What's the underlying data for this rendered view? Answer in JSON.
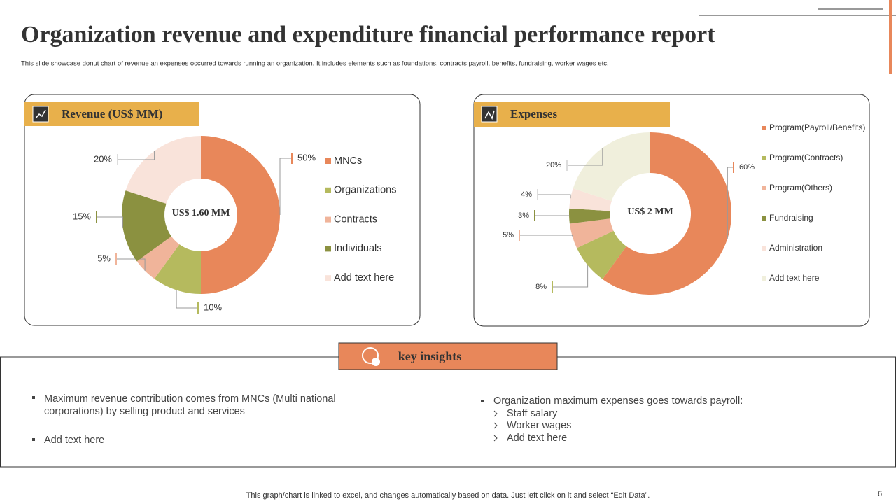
{
  "title": "Organization revenue and expenditure financial performance report",
  "subtitle": "This slide showcase donut chart of revenue an expenses occurred towards running an organization. It includes elements such as foundations, contracts payroll, benefits, fundraising, worker wages etc.",
  "chart_data": [
    {
      "type": "donut",
      "title": "Revenue (US$ MM)",
      "center_label": "US$ 1.60 MM",
      "categories": [
        "MNCs",
        "Organizations",
        "Contracts",
        "Individuals",
        "Add text here"
      ],
      "values": [
        50,
        10,
        5,
        15,
        20
      ],
      "value_labels": [
        "50%",
        "10%",
        "5%",
        "15%",
        "20%"
      ],
      "colors": [
        "#e8875a",
        "#b5ba5e",
        "#f0b49a",
        "#8b9140",
        "#f9e3da"
      ]
    },
    {
      "type": "donut",
      "title": "Expenses",
      "center_label": "US$ 2 MM",
      "categories": [
        "Program(Payroll/Benefits)",
        "Program(Contracts)",
        "Program(Others)",
        "Fundraising",
        "Administration",
        "Add text here"
      ],
      "values": [
        60,
        8,
        5,
        3,
        4,
        20
      ],
      "value_labels": [
        "60%",
        "8%",
        "5%",
        "3%",
        "4%",
        "20%"
      ],
      "colors": [
        "#e8875a",
        "#b5ba5e",
        "#f0b49a",
        "#8b9140",
        "#f9e3da",
        "#f0efdc"
      ]
    }
  ],
  "insights": {
    "title": "key insights",
    "left": [
      "Maximum revenue contribution comes from MNCs (Multi national corporations) by selling product and services",
      "Add text here"
    ],
    "right": {
      "text": "Organization maximum expenses goes towards payroll:",
      "items": [
        "Staff salary",
        "Worker wages",
        "Add text here"
      ]
    }
  },
  "footer": "This graph/chart is linked to excel,  and changes automatically based on data. Just left click on it and select “Edit Data”.",
  "page_number": "6"
}
